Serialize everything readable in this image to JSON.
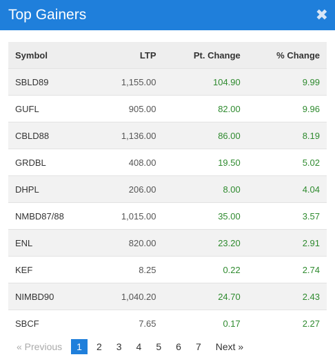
{
  "header": {
    "title": "Top Gainers",
    "close_glyph": "✖"
  },
  "table": {
    "columns": [
      "Symbol",
      "LTP",
      "Pt. Change",
      "% Change"
    ],
    "rows": [
      {
        "symbol": "SBLD89",
        "ltp": "1,155.00",
        "pt_change": "104.90",
        "pct_change": "9.99"
      },
      {
        "symbol": "GUFL",
        "ltp": "905.00",
        "pt_change": "82.00",
        "pct_change": "9.96"
      },
      {
        "symbol": "CBLD88",
        "ltp": "1,136.00",
        "pt_change": "86.00",
        "pct_change": "8.19"
      },
      {
        "symbol": "GRDBL",
        "ltp": "408.00",
        "pt_change": "19.50",
        "pct_change": "5.02"
      },
      {
        "symbol": "DHPL",
        "ltp": "206.00",
        "pt_change": "8.00",
        "pct_change": "4.04"
      },
      {
        "symbol": "NMBD87/88",
        "ltp": "1,015.00",
        "pt_change": "35.00",
        "pct_change": "3.57"
      },
      {
        "symbol": "ENL",
        "ltp": "820.00",
        "pt_change": "23.20",
        "pct_change": "2.91"
      },
      {
        "symbol": "KEF",
        "ltp": "8.25",
        "pt_change": "0.22",
        "pct_change": "2.74"
      },
      {
        "symbol": "NIMBD90",
        "ltp": "1,040.20",
        "pt_change": "24.70",
        "pct_change": "2.43"
      },
      {
        "symbol": "SBCF",
        "ltp": "7.65",
        "pt_change": "0.17",
        "pct_change": "2.27"
      }
    ]
  },
  "pagination": {
    "prev_label": "«  Previous",
    "pages": [
      "1",
      "2",
      "3",
      "4",
      "5",
      "6",
      "7"
    ],
    "active_page": "1",
    "next_label": "Next  »"
  },
  "colors": {
    "accent": "#1f7fdb",
    "positive": "#2e8a2e"
  }
}
